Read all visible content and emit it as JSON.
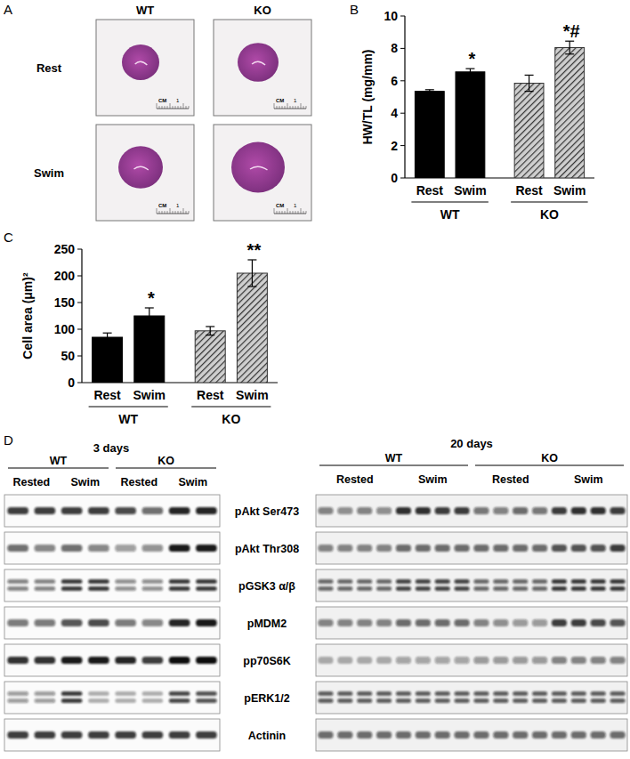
{
  "chart_data": [
    {
      "type": "bar",
      "panel_label": "B",
      "y_label": "HW/TL (mg/mm)",
      "categories": [
        "Rest",
        "Swim",
        "Rest",
        "Swim"
      ],
      "groups": [
        "WT",
        "KO"
      ],
      "values": [
        5.35,
        6.55,
        5.85,
        8.05
      ],
      "errors": [
        0.1,
        0.2,
        0.5,
        0.4
      ],
      "annotations": [
        null,
        "*",
        null,
        "*#"
      ],
      "colors": [
        "#000000",
        "#000000",
        "#333333",
        "#333333"
      ],
      "ylim": [
        0,
        10
      ],
      "yticks": [
        0,
        2,
        4,
        6,
        8,
        10
      ]
    },
    {
      "type": "bar",
      "panel_label": "C",
      "y_label": "Cell area (μm)²",
      "categories": [
        "Rest",
        "Swim",
        "Rest",
        "Swim"
      ],
      "groups": [
        "WT",
        "KO"
      ],
      "values": [
        85,
        125,
        97,
        205
      ],
      "errors": [
        8,
        15,
        8,
        25
      ],
      "annotations": [
        null,
        "*",
        null,
        "**"
      ],
      "colors": [
        "#000000",
        "#000000",
        "#333333",
        "#333333"
      ],
      "ylim": [
        0,
        250
      ],
      "yticks": [
        0,
        50,
        100,
        150,
        200,
        250
      ]
    }
  ],
  "panel_a": {
    "label": "A",
    "columns": [
      "WT",
      "KO"
    ],
    "rows": [
      "Rest",
      "Swim"
    ],
    "scale_unit": "CM",
    "scale_value": 1
  },
  "panel_d": {
    "label": "D",
    "row_labels": [
      "pAkt Ser473",
      "pAkt Thr308",
      "pGSK3 α/β",
      "pMDM2",
      "pp70S6K",
      "pERK1/2",
      "Actinin"
    ],
    "doublet": [
      false,
      false,
      true,
      false,
      false,
      true,
      false
    ],
    "blots": [
      {
        "title": "3 days",
        "groups": [
          "WT",
          "KO"
        ],
        "conditions": [
          "Rested",
          "Swim"
        ],
        "intensities": [
          [
            0.8,
            0.8,
            0.8,
            0.8,
            0.75,
            0.6,
            0.9,
            0.9
          ],
          [
            0.6,
            0.5,
            0.6,
            0.5,
            0.4,
            0.45,
            0.95,
            0.95
          ],
          [
            0.5,
            0.5,
            0.8,
            0.8,
            0.45,
            0.45,
            0.8,
            0.8
          ],
          [
            0.55,
            0.55,
            0.7,
            0.75,
            0.55,
            0.5,
            0.9,
            0.95
          ],
          [
            0.85,
            0.85,
            0.95,
            0.95,
            0.9,
            0.8,
            1,
            1
          ],
          [
            0.4,
            0.4,
            0.8,
            0.3,
            0.3,
            0.3,
            0.75,
            0.7
          ],
          [
            0.8,
            0.8,
            0.8,
            0.8,
            0.8,
            0.8,
            0.8,
            0.8
          ]
        ]
      },
      {
        "title": "20 days",
        "groups": [
          "WT",
          "KO"
        ],
        "conditions": [
          "Rested",
          "Swim"
        ],
        "intensities": [
          [
            0.5,
            0.45,
            0.5,
            0.45,
            0.85,
            0.85,
            0.8,
            0.8,
            0.55,
            0.5,
            0.6,
            0.55,
            0.8,
            0.85,
            0.85,
            0.8
          ],
          [
            0.5,
            0.5,
            0.5,
            0.5,
            0.6,
            0.6,
            0.6,
            0.6,
            0.6,
            0.6,
            0.6,
            0.6,
            0.7,
            0.7,
            0.7,
            0.8
          ],
          [
            0.6,
            0.6,
            0.6,
            0.6,
            0.75,
            0.75,
            0.75,
            0.75,
            0.6,
            0.6,
            0.6,
            0.6,
            0.8,
            0.8,
            0.8,
            0.8
          ],
          [
            0.5,
            0.5,
            0.5,
            0.5,
            0.6,
            0.6,
            0.6,
            0.6,
            0.5,
            0.45,
            0.4,
            0.4,
            0.8,
            0.8,
            0.75,
            0.7
          ],
          [
            0.3,
            0.3,
            0.3,
            0.3,
            0.35,
            0.35,
            0.35,
            0.35,
            0.4,
            0.4,
            0.4,
            0.4,
            0.5,
            0.5,
            0.5,
            0.5
          ],
          [
            0.65,
            0.65,
            0.65,
            0.65,
            0.65,
            0.65,
            0.65,
            0.65,
            0.65,
            0.65,
            0.65,
            0.65,
            0.65,
            0.65,
            0.65,
            0.65
          ],
          [
            0.6,
            0.6,
            0.6,
            0.6,
            0.6,
            0.6,
            0.6,
            0.6,
            0.6,
            0.6,
            0.6,
            0.6,
            0.6,
            0.6,
            0.6,
            0.6
          ]
        ]
      }
    ]
  }
}
